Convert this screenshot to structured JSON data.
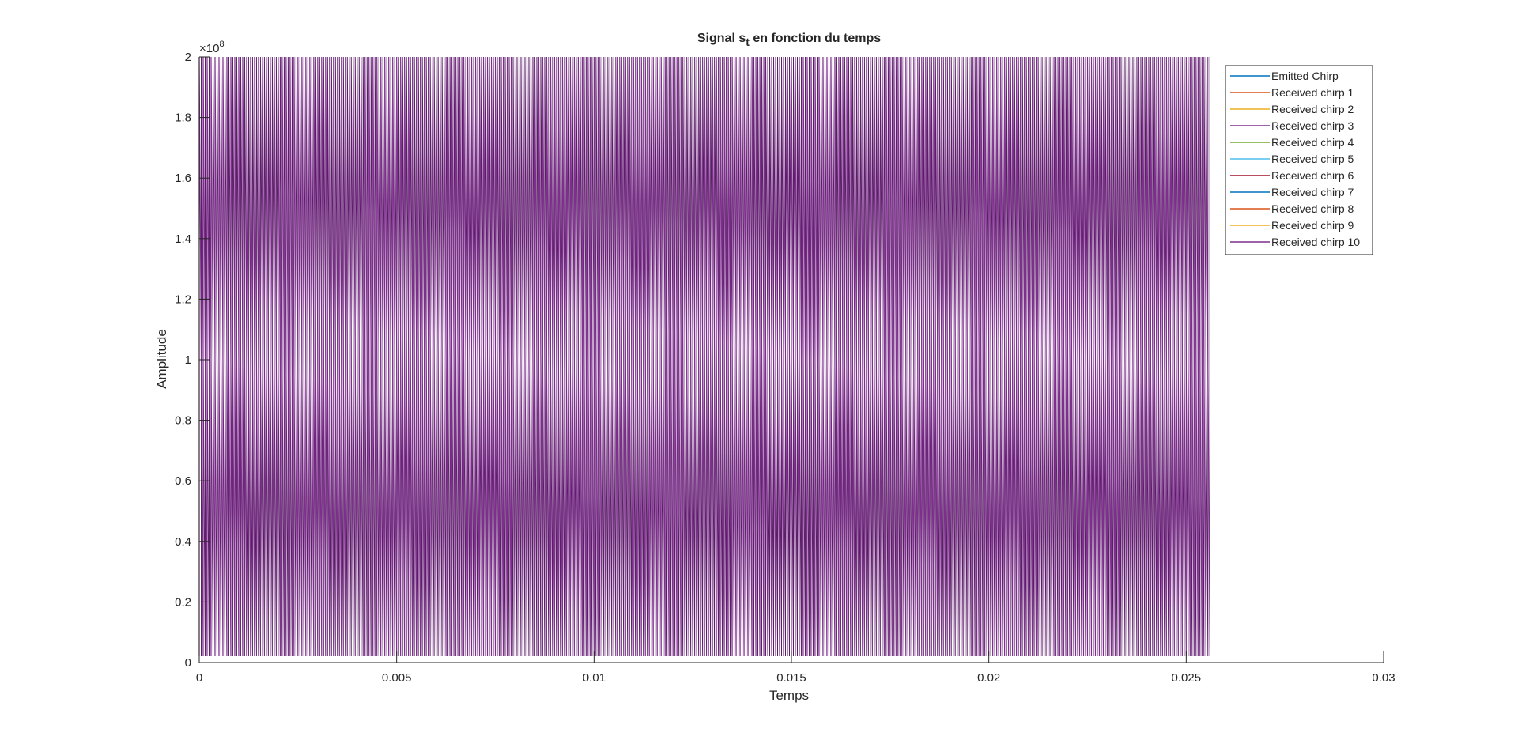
{
  "chart_data": {
    "type": "line",
    "title": "Signal s",
    "title_subscript": "t",
    "title_suffix": " en fonction du temps",
    "xlabel": "Temps",
    "ylabel": "Amplitude",
    "xlim": [
      0,
      0.03
    ],
    "ylim": [
      0,
      200000000
    ],
    "y_exponent_label": "×10",
    "y_exponent": "8",
    "xticks": [
      0,
      0.005,
      0.01,
      0.015,
      0.02,
      0.025,
      0.03
    ],
    "xtick_labels": [
      "0",
      "0.005",
      "0.01",
      "0.015",
      "0.02",
      "0.025",
      "0.03"
    ],
    "yticks": [
      0,
      20000000,
      40000000,
      60000000,
      80000000,
      100000000,
      120000000,
      140000000,
      160000000,
      180000000,
      200000000
    ],
    "ytick_labels": [
      "0",
      "0.2",
      "0.4",
      "0.6",
      "0.8",
      "1",
      "1.2",
      "1.4",
      "1.6",
      "1.8",
      "2"
    ],
    "grid": false,
    "legend_position": "top-right",
    "signal": {
      "t_start": 0,
      "t_end": 0.0256,
      "period": 0.0001,
      "min_amplitude": 0,
      "max_amplitude": 200000000
    },
    "series": [
      {
        "name": "Emitted Chirp",
        "color": "#0072BD"
      },
      {
        "name": "Received chirp 1",
        "color": "#D95319"
      },
      {
        "name": "Received chirp 2",
        "color": "#EDB120"
      },
      {
        "name": "Received chirp 3",
        "color": "#7E2F8E"
      },
      {
        "name": "Received chirp 4",
        "color": "#77AC30"
      },
      {
        "name": "Received chirp 5",
        "color": "#4DBEEE"
      },
      {
        "name": "Received chirp 6",
        "color": "#A2142F"
      },
      {
        "name": "Received chirp 7",
        "color": "#0072BD"
      },
      {
        "name": "Received chirp 8",
        "color": "#D95319"
      },
      {
        "name": "Received chirp 9",
        "color": "#EDB120"
      },
      {
        "name": "Received chirp 10",
        "color": "#7E2F8E"
      }
    ]
  }
}
